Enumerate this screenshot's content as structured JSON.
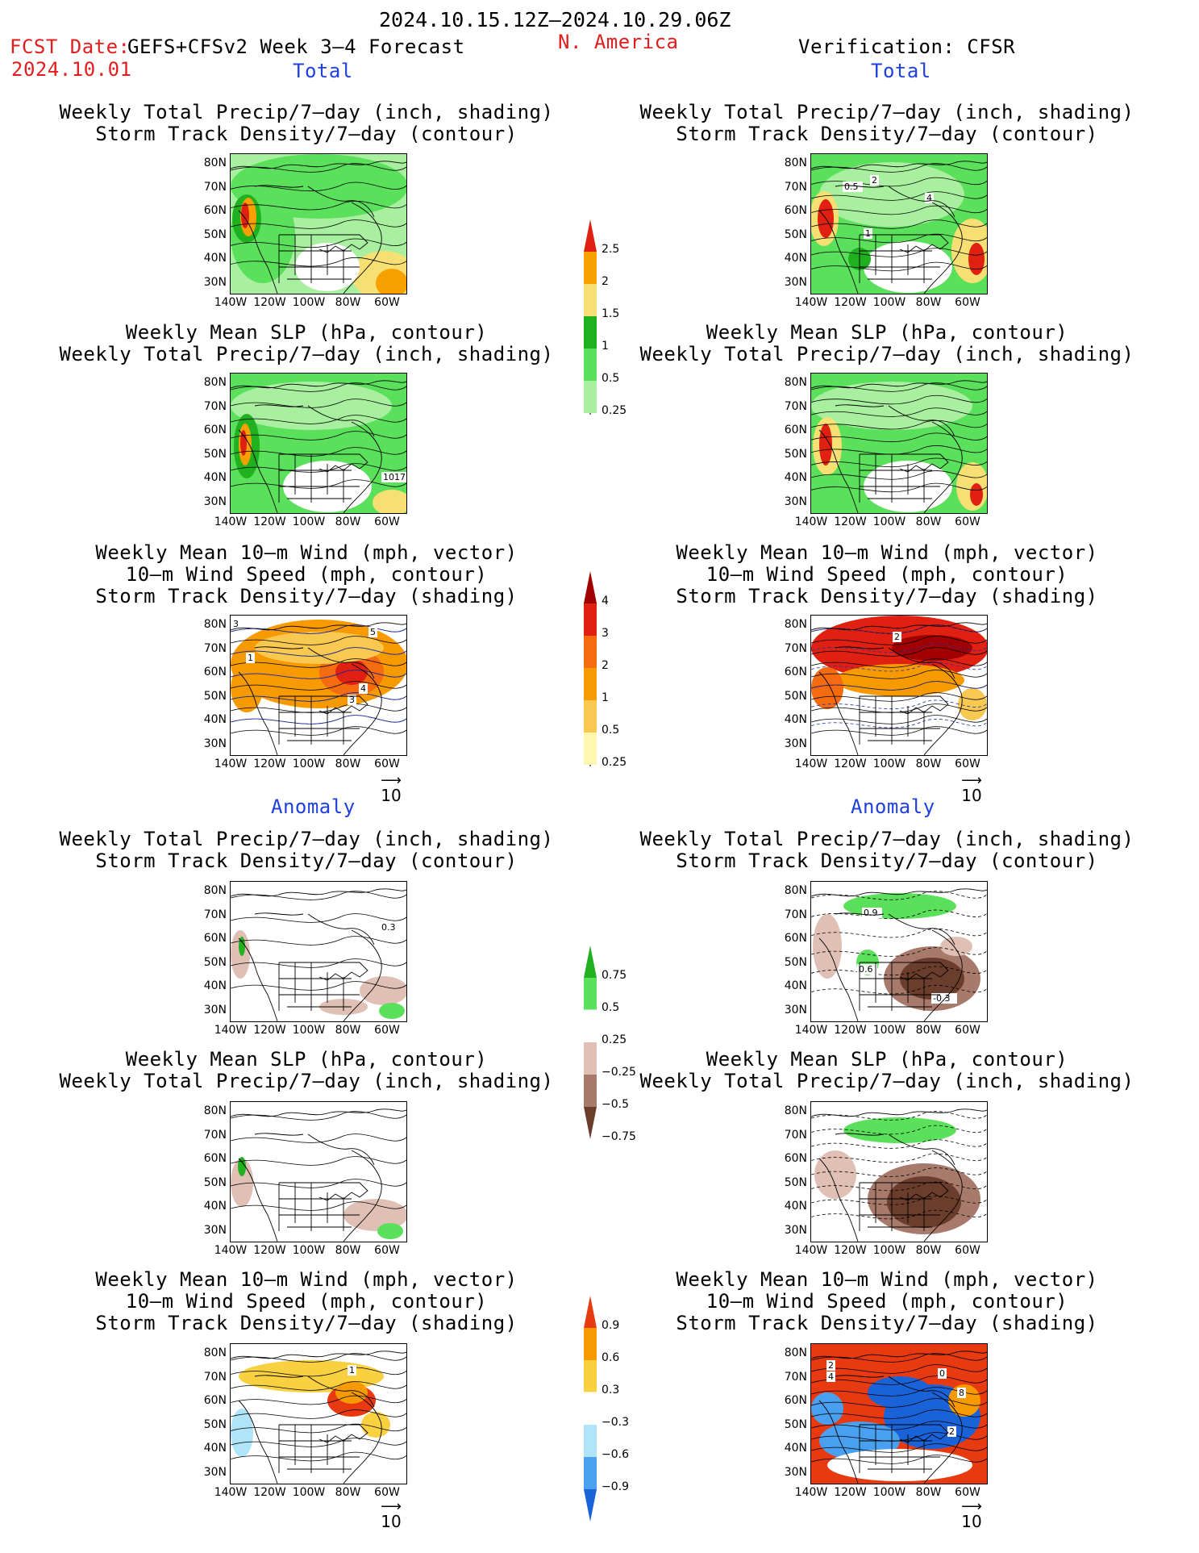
{
  "header": {
    "period": "2024.10.15.12Z–2024.10.29.06Z",
    "fcst_label": "FCST Date:",
    "model": "GEFS+CFSv2 Week 3–4 Forecast",
    "region": "N. America",
    "fcst_date": "2024.10.01",
    "verification": "Verification: CFSR"
  },
  "sections": {
    "total": "Total",
    "anomaly": "Anomaly"
  },
  "titles": {
    "precip_storm": [
      "Weekly Total Precip/7–day (inch, shading)",
      "Storm Track Density/7–day (contour)"
    ],
    "slp_precip": [
      "Weekly Mean SLP (hPa, contour)",
      "Weekly Total Precip/7–day (inch, shading)"
    ],
    "wind_storm": [
      "Weekly Mean 10–m Wind (mph, vector)",
      "10–m Wind Speed (mph, contour)",
      "Storm Track Density/7–day (shading)"
    ]
  },
  "axes": {
    "lat": [
      "80N",
      "70N",
      "60N",
      "50N",
      "40N",
      "30N"
    ],
    "lon": [
      "140W",
      "120W",
      "100W",
      "80W",
      "60W"
    ]
  },
  "vector_ref": "10",
  "colorbars": {
    "precip_total": [
      "0.25",
      "0.5",
      "1",
      "1.5",
      "2",
      "2.5"
    ],
    "storm_total": [
      "0.25",
      "0.5",
      "1",
      "2",
      "3",
      "4"
    ],
    "precip_anom": [
      "−0.75",
      "−0.5",
      "−0.25",
      "0.25",
      "0.5",
      "0.75"
    ],
    "storm_anom": [
      "−0.9",
      "−0.6",
      "−0.3",
      "0.3",
      "0.6",
      "0.9"
    ]
  },
  "map_labels": {
    "fc_slp_total": "1017",
    "obs_precip_total": [
      "0.5",
      "2",
      "4",
      "1"
    ],
    "fc_wind_total": [
      "3",
      "5",
      "1",
      "4",
      "3"
    ],
    "obs_wind_total": [
      "2"
    ],
    "fc_precip_anom": [
      "0.3"
    ],
    "obs_precip_anom": [
      "0.9",
      "0.6",
      "-0.3"
    ],
    "fc_wind_anom": [
      "1"
    ],
    "obs_wind_anom": [
      "2",
      "4",
      "0",
      "8",
      "2"
    ]
  },
  "colors": {
    "precip": [
      "#a8f0a0",
      "#5ae05a",
      "#20b020",
      "#f7e073",
      "#f7a000",
      "#e02010"
    ],
    "storm_total": [
      "#fff6b0",
      "#f8c850",
      "#f79a00",
      "#f56b10",
      "#e02010",
      "#a00000"
    ],
    "precip_anom": [
      "#6b3d2c",
      "#a77a6b",
      "#e0c0b5",
      "#ffffff",
      "#5ae05a",
      "#20b020"
    ],
    "storm_anom": [
      "#1a62d8",
      "#4aa0f0",
      "#b0e4f8",
      "#ffffff",
      "#f8d040",
      "#f79a00",
      "#e83a10"
    ]
  }
}
